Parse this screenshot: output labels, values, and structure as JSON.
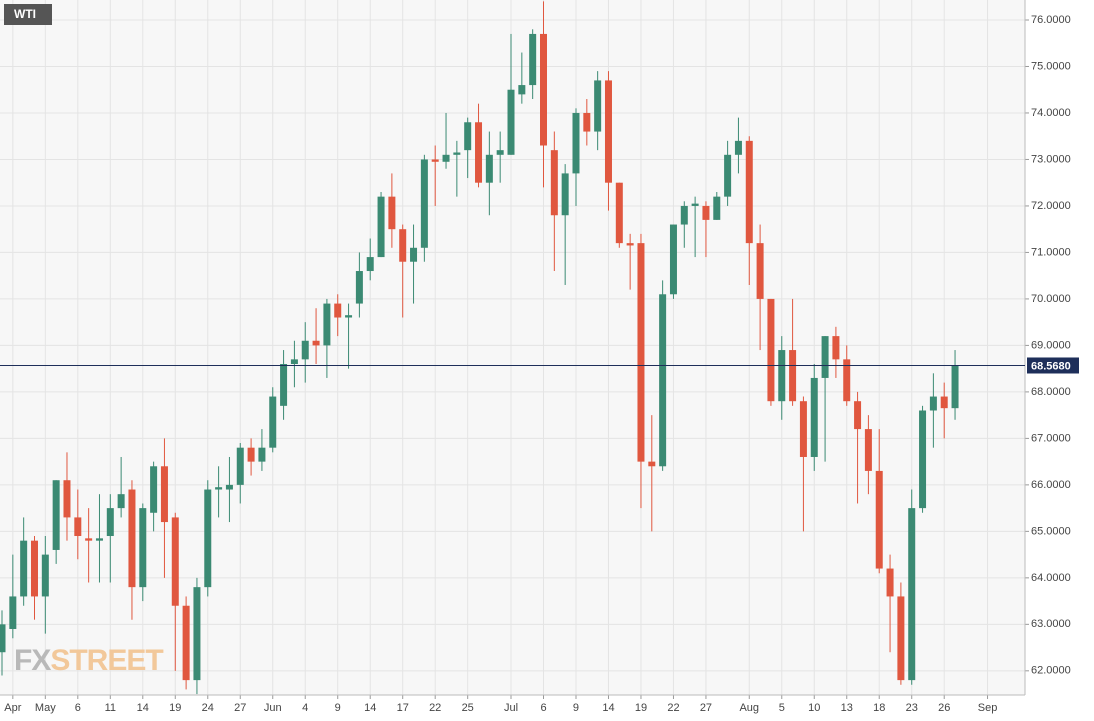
{
  "chart_data": {
    "type": "candlestick",
    "title": "WTI",
    "watermark": [
      "FX",
      "STREET"
    ],
    "categories": [
      null,
      "Apr",
      null,
      null,
      "May",
      null,
      null,
      "6",
      null,
      null,
      "11",
      null,
      null,
      "14",
      null,
      null,
      "19",
      null,
      null,
      "24",
      null,
      null,
      "27",
      null,
      null,
      "Jun",
      null,
      null,
      "4",
      null,
      null,
      "9",
      null,
      null,
      "14",
      null,
      null,
      "17",
      null,
      null,
      "22",
      null,
      null,
      "25",
      null,
      null,
      null,
      "Jul",
      null,
      null,
      "6",
      null,
      null,
      "9",
      null,
      null,
      "14",
      null,
      null,
      "19",
      null,
      null,
      "22",
      null,
      null,
      "27",
      null,
      null,
      null,
      "Aug",
      null,
      null,
      "5",
      null,
      null,
      "10",
      null,
      null,
      "13",
      null,
      null,
      "18",
      null,
      null,
      "23",
      null,
      null,
      "26",
      null,
      null,
      null,
      "Sep"
    ],
    "open": [
      62.4,
      62.9,
      63.6,
      64.8,
      63.6,
      64.6,
      66.1,
      65.3,
      64.85,
      64.8,
      64.9,
      65.5,
      65.9,
      63.8,
      65.4,
      66.4,
      65.3,
      63.4,
      61.8,
      63.8,
      65.9,
      65.9,
      66.0,
      66.8,
      66.5,
      66.8,
      67.7,
      68.6,
      68.7,
      69.1,
      69.0,
      69.9,
      69.6,
      69.9,
      70.6,
      70.9,
      72.2,
      71.5,
      70.8,
      71.1,
      73.0,
      72.95,
      73.1,
      73.2,
      73.8,
      72.5,
      73.1,
      73.1,
      74.4,
      74.6,
      75.7,
      73.2,
      71.8,
      72.7,
      74.0,
      73.6,
      74.7,
      72.5,
      71.2,
      71.2,
      66.5,
      66.4,
      70.1,
      71.6,
      72.0,
      72.0,
      71.7,
      72.2,
      73.1,
      73.4,
      71.2,
      70.0,
      67.8,
      68.9,
      67.8,
      66.6,
      68.3,
      69.2,
      68.7,
      67.8,
      67.2,
      66.3,
      64.2,
      63.6,
      61.8,
      65.5,
      67.6,
      67.9,
      67.65,
      null,
      null,
      null
    ],
    "high": [
      63.3,
      64.5,
      65.3,
      64.9,
      64.9,
      66.1,
      66.7,
      65.9,
      65.5,
      65.8,
      65.8,
      66.6,
      66.1,
      65.6,
      66.5,
      67.0,
      65.4,
      63.6,
      64.0,
      66.1,
      66.4,
      66.6,
      66.9,
      67.0,
      67.2,
      68.1,
      68.9,
      69.1,
      69.5,
      69.8,
      70.0,
      70.1,
      69.9,
      71.0,
      71.3,
      72.3,
      72.7,
      71.6,
      71.6,
      73.1,
      73.3,
      74.0,
      73.4,
      73.9,
      74.2,
      73.6,
      73.6,
      75.7,
      75.3,
      75.8,
      76.4,
      73.6,
      72.9,
      74.1,
      74.3,
      74.9,
      74.9,
      72.5,
      71.4,
      71.4,
      67.5,
      70.4,
      71.6,
      72.1,
      72.2,
      72.1,
      72.3,
      73.4,
      73.9,
      73.5,
      71.6,
      70.0,
      69.2,
      70.0,
      67.9,
      68.6,
      69.2,
      69.4,
      69.0,
      68.0,
      67.5,
      67.2,
      64.5,
      63.9,
      65.9,
      67.7,
      68.4,
      68.2,
      68.9,
      null,
      null,
      null
    ],
    "low": [
      61.9,
      62.7,
      63.4,
      63.1,
      62.8,
      64.3,
      64.8,
      64.4,
      63.9,
      63.9,
      63.9,
      65.3,
      63.1,
      63.5,
      65.0,
      64.0,
      62.0,
      61.6,
      61.5,
      63.6,
      65.3,
      65.2,
      65.6,
      66.2,
      66.3,
      66.7,
      67.4,
      68.1,
      68.2,
      68.6,
      68.3,
      69.2,
      68.5,
      69.6,
      70.4,
      70.9,
      71.1,
      69.6,
      69.9,
      70.8,
      72.0,
      72.8,
      72.2,
      72.6,
      72.4,
      71.8,
      72.5,
      73.1,
      74.2,
      74.3,
      72.4,
      70.6,
      70.3,
      72.0,
      73.3,
      73.2,
      71.9,
      71.1,
      70.2,
      65.5,
      65.0,
      66.3,
      70.0,
      71.1,
      70.9,
      70.9,
      71.7,
      72.0,
      72.7,
      70.3,
      68.9,
      67.7,
      67.4,
      67.7,
      65.0,
      66.3,
      66.5,
      68.3,
      67.7,
      65.6,
      65.8,
      64.1,
      62.4,
      61.7,
      61.7,
      65.4,
      66.8,
      67.0,
      67.4,
      null,
      null,
      null
    ],
    "close": [
      63.0,
      63.6,
      64.8,
      63.6,
      64.5,
      66.1,
      65.3,
      64.9,
      64.8,
      64.85,
      65.5,
      65.8,
      63.8,
      65.5,
      66.4,
      65.2,
      63.4,
      61.8,
      63.8,
      65.9,
      65.95,
      66.0,
      66.8,
      66.5,
      66.8,
      67.9,
      68.6,
      68.7,
      69.1,
      69.0,
      69.9,
      69.6,
      69.65,
      70.6,
      70.9,
      72.2,
      71.5,
      70.8,
      71.1,
      73.0,
      72.95,
      73.1,
      73.15,
      73.8,
      72.5,
      73.1,
      73.2,
      74.5,
      74.6,
      75.7,
      73.3,
      71.8,
      72.7,
      74.0,
      73.6,
      74.7,
      72.5,
      71.2,
      71.15,
      66.5,
      66.4,
      70.1,
      71.6,
      72.0,
      72.05,
      71.7,
      72.2,
      73.1,
      73.4,
      71.2,
      70.0,
      67.8,
      68.9,
      67.8,
      66.6,
      68.3,
      69.2,
      68.7,
      67.8,
      67.2,
      66.3,
      64.2,
      63.6,
      61.8,
      65.5,
      67.6,
      67.9,
      67.65,
      68.568,
      null,
      null,
      null
    ],
    "up_color": "#3b8a73",
    "down_color": "#e0573f",
    "ylim": [
      61.48,
      76.43
    ],
    "yticks": [
      {
        "value": 62,
        "label": "62.0000"
      },
      {
        "value": 63,
        "label": "63.0000"
      },
      {
        "value": 64,
        "label": "64.0000"
      },
      {
        "value": 65,
        "label": "65.0000"
      },
      {
        "value": 66,
        "label": "66.0000"
      },
      {
        "value": 67,
        "label": "67.0000"
      },
      {
        "value": 68,
        "label": "68.0000"
      },
      {
        "value": 69,
        "label": "69.0000"
      },
      {
        "value": 70,
        "label": "70.0000"
      },
      {
        "value": 71,
        "label": "71.0000"
      },
      {
        "value": 72,
        "label": "72.0000"
      },
      {
        "value": 73,
        "label": "73.0000"
      },
      {
        "value": 74,
        "label": "74.0000"
      },
      {
        "value": 75,
        "label": "75.0000"
      },
      {
        "value": 76,
        "label": "76.0000"
      }
    ],
    "last_price": {
      "value": 68.568,
      "label": "68.5680"
    },
    "grid": true
  }
}
